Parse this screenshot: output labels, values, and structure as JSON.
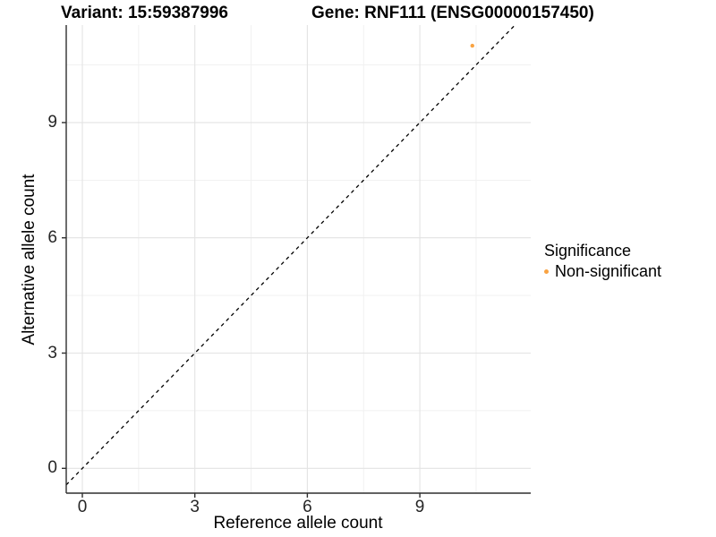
{
  "titles": {
    "variant": "Variant: 15:59387996",
    "gene": "Gene: RNF111 (ENSG00000157450)"
  },
  "chart_data": {
    "type": "scatter",
    "xlabel": "Reference allele count",
    "ylabel": "Alternative allele count",
    "x_ticks": [
      0,
      3,
      6,
      9
    ],
    "y_ticks": [
      0,
      3,
      6,
      9
    ],
    "x_minor_ticks": [
      1.5,
      4.5,
      7.5,
      10.5
    ],
    "y_minor_ticks": [
      1.5,
      4.5,
      7.5,
      10.5
    ],
    "xlim": [
      -0.43,
      11.96
    ],
    "ylim": [
      -0.65,
      11.54
    ],
    "grid": "on",
    "reference_line": {
      "equation": "y = x",
      "style": "dashed",
      "color": "#000000"
    },
    "series": [
      {
        "name": "Non-significant",
        "color": "#F9A342",
        "points": [
          {
            "x": 10.4,
            "y": 11.0
          }
        ]
      }
    ],
    "legend": {
      "position": "right",
      "title": "Significance",
      "entries": [
        {
          "label": "Non-significant",
          "color": "#F9A342"
        }
      ]
    },
    "colors": {
      "grid_major": "#E3E3E3",
      "grid_minor": "#F1F1F1",
      "axis_line": "#2F2F2F",
      "point_orange": "#F9A342"
    }
  }
}
